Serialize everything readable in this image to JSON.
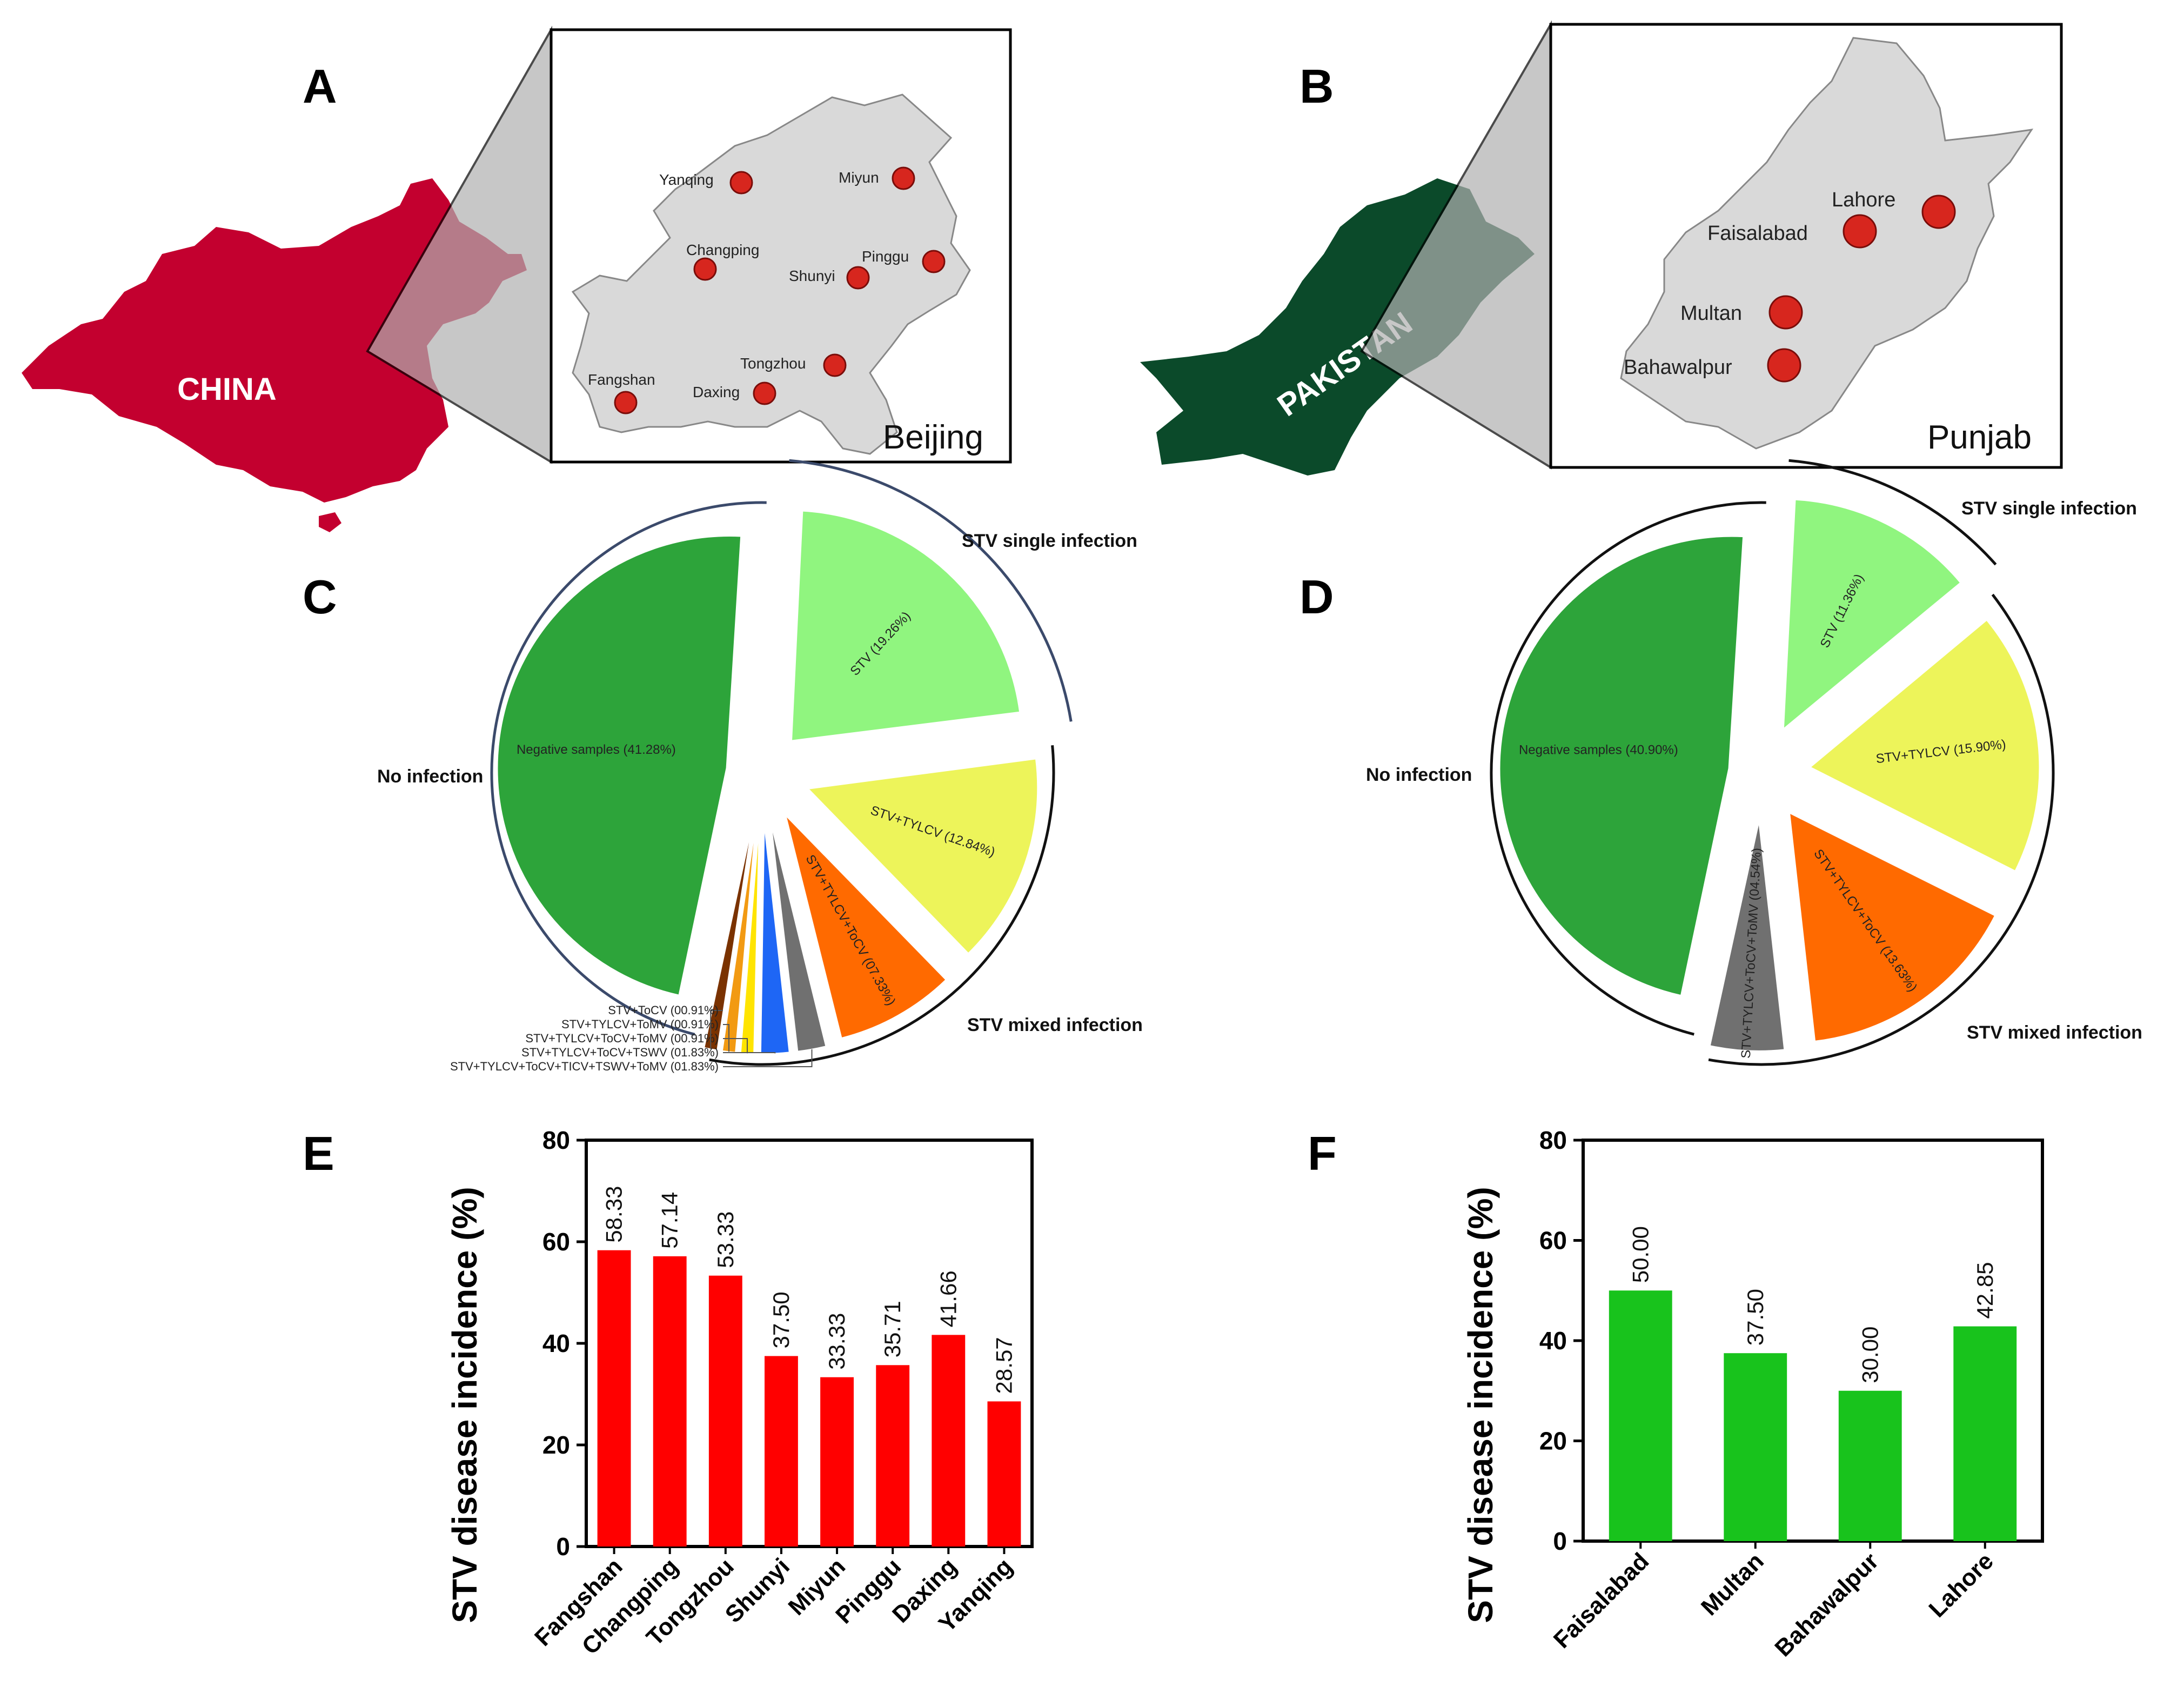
{
  "panel_labels": {
    "a": "A",
    "b": "B",
    "c": "C",
    "d": "D",
    "e": "E",
    "f": "F"
  },
  "map_a": {
    "country": "CHINA",
    "region": "Beijing",
    "cities": [
      "Yanqing",
      "Miyun",
      "Changping",
      "Pinggu",
      "Shunyi",
      "Tongzhou",
      "Fangshan",
      "Daxing"
    ],
    "colors": {
      "country": "#C3002F",
      "region": "#D9D9D9"
    }
  },
  "map_b": {
    "country": "PAKISTAN",
    "region": "Punjab",
    "cities": [
      "Lahore",
      "Faisalabad",
      "Multan",
      "Bahawalpur"
    ],
    "colors": {
      "country": "#0B4A2A",
      "region": "#D9D9D9"
    }
  },
  "chart_data": [
    {
      "type": "pie",
      "panel": "C",
      "group_labels": {
        "none": "No infection",
        "single": "STV single infection",
        "mixed": "STV mixed infection"
      },
      "slices": [
        {
          "label": "Negative samples (41.28%)",
          "value": 41.28,
          "color": "#2DA43A",
          "group": "none"
        },
        {
          "label": "STV (19.26%)",
          "value": 19.26,
          "color": "#90F57F",
          "group": "single"
        },
        {
          "label": "STV+TYLCV (12.84%)",
          "value": 12.84,
          "color": "#EDF45A",
          "group": "mixed"
        },
        {
          "label": "STV+TYLCV+ToCV (07.33%)",
          "value": 7.33,
          "color": "#FF6A00",
          "group": "mixed"
        },
        {
          "label": "STV+TYLCV+ToCV+TICV+TSWV+ToMV (01.83%)",
          "value": 1.83,
          "color": "#707070",
          "group": "mixed"
        },
        {
          "label": "STV+TYLCV+ToCV+TSWV (01.83%)",
          "value": 1.83,
          "color": "#1E66F5",
          "group": "mixed"
        },
        {
          "label": "STV+TYLCV+ToCV+ToMV (00.91%)",
          "value": 0.91,
          "color": "#FFE400",
          "group": "mixed"
        },
        {
          "label": "STV+TYLCV+ToMV (00.91%)",
          "value": 0.91,
          "color": "#F29A12",
          "group": "mixed"
        },
        {
          "label": "STV+ToCV (00.91%)",
          "value": 0.91,
          "color": "#7A3200",
          "group": "mixed"
        }
      ]
    },
    {
      "type": "pie",
      "panel": "D",
      "group_labels": {
        "none": "No infection",
        "single": "STV single infection",
        "mixed": "STV mixed infection"
      },
      "slices": [
        {
          "label": "Negative samples (40.90%)",
          "value": 40.9,
          "color": "#2DA43A",
          "group": "none"
        },
        {
          "label": "STV (11.36%)",
          "value": 11.36,
          "color": "#90F57F",
          "group": "single"
        },
        {
          "label": "STV+TYLCV (15.90%)",
          "value": 15.9,
          "color": "#EDF45A",
          "group": "mixed"
        },
        {
          "label": "STV+TYLCV+ToCV (13.63%)",
          "value": 13.63,
          "color": "#FF6A00",
          "group": "mixed"
        },
        {
          "label": "STV+TYLCV+ToCV+ToMV (04.54%)",
          "value": 4.54,
          "color": "#707070",
          "group": "mixed"
        }
      ]
    },
    {
      "type": "bar",
      "panel": "E",
      "categories": [
        "Fangshan",
        "Changping",
        "Tongzhou",
        "Shunyi",
        "Miyun",
        "Pinggu",
        "Daxing",
        "Yanqing"
      ],
      "values": [
        58.33,
        57.14,
        53.33,
        37.5,
        33.33,
        35.71,
        41.66,
        28.57
      ],
      "value_labels": [
        "58.33",
        "57.14",
        "53.33",
        "37.50",
        "33.33",
        "35.71",
        "41.66",
        "28.57"
      ],
      "ylabel": "STV disease incidence (%)",
      "ylim": [
        0,
        80
      ],
      "yticks": [
        0,
        20,
        40,
        60,
        80
      ],
      "ytick_labels": [
        "0",
        "20",
        "40",
        "60",
        "80"
      ],
      "color": "#FF0000"
    },
    {
      "type": "bar",
      "panel": "F",
      "categories": [
        "Faisalabad",
        "Multan",
        "Bahawalpur",
        "Lahore"
      ],
      "values": [
        50.0,
        37.5,
        30.0,
        42.85
      ],
      "value_labels": [
        "50.00",
        "37.50",
        "30.00",
        "42.85"
      ],
      "ylabel": "STV disease incidence (%)",
      "ylim": [
        0,
        80
      ],
      "yticks": [
        0,
        20,
        40,
        60,
        80
      ],
      "ytick_labels": [
        "0",
        "20",
        "40",
        "60",
        "80"
      ],
      "color": "#18C31C"
    }
  ]
}
